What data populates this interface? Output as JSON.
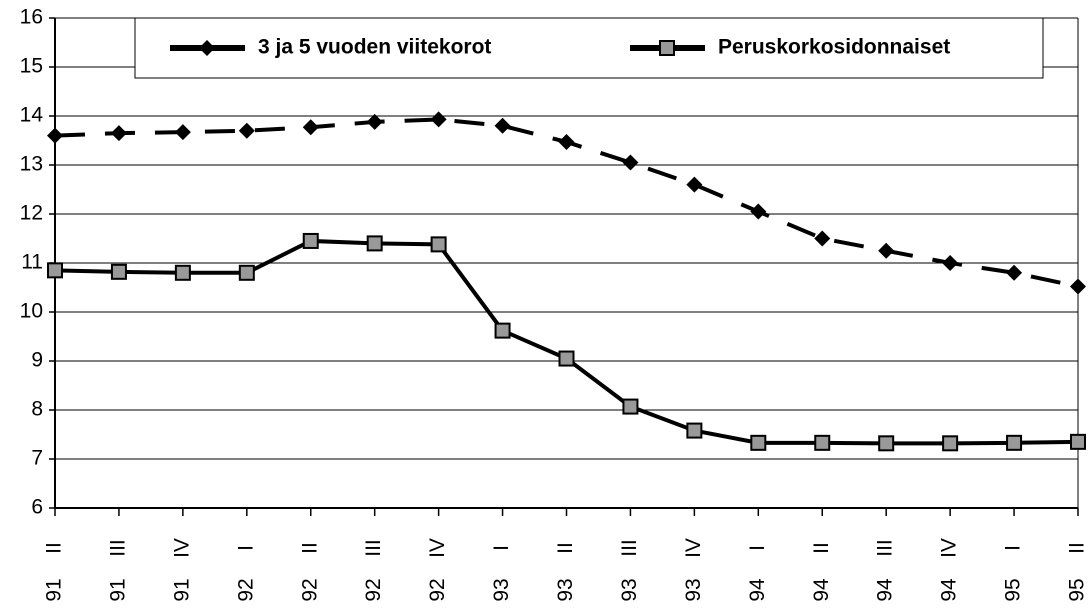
{
  "chart_data": {
    "type": "line",
    "categories": [
      [
        "II",
        "91"
      ],
      [
        "III",
        "91"
      ],
      [
        "IV",
        "91"
      ],
      [
        "I",
        "92"
      ],
      [
        "II",
        "92"
      ],
      [
        "III",
        "92"
      ],
      [
        "IV",
        "92"
      ],
      [
        "I",
        "93"
      ],
      [
        "II",
        "93"
      ],
      [
        "III",
        "93"
      ],
      [
        "IV",
        "93"
      ],
      [
        "I",
        "94"
      ],
      [
        "II",
        "94"
      ],
      [
        "III",
        "94"
      ],
      [
        "IV",
        "94"
      ],
      [
        "I",
        "95"
      ],
      [
        "II",
        "95"
      ]
    ],
    "series": [
      {
        "name": "3 ja 5 vuoden viitekorot",
        "color": "#000000",
        "marker": "diamond",
        "dashed": true,
        "values": [
          13.6,
          13.65,
          13.67,
          13.7,
          13.77,
          13.88,
          13.93,
          13.8,
          13.47,
          13.05,
          12.6,
          12.05,
          11.5,
          11.25,
          11.0,
          10.8,
          10.52
        ]
      },
      {
        "name": "Peruskorkosidonnaiset",
        "color": "#000000",
        "marker": "square",
        "dashed": false,
        "values": [
          10.85,
          10.82,
          10.8,
          10.8,
          11.45,
          11.4,
          11.38,
          9.62,
          9.05,
          8.07,
          7.58,
          7.33,
          7.33,
          7.32,
          7.32,
          7.33,
          7.35
        ]
      }
    ],
    "ylim": [
      6,
      16
    ],
    "yticks": [
      6,
      7,
      8,
      9,
      10,
      11,
      12,
      13,
      14,
      15,
      16
    ],
    "grid": true,
    "legend": "top"
  }
}
